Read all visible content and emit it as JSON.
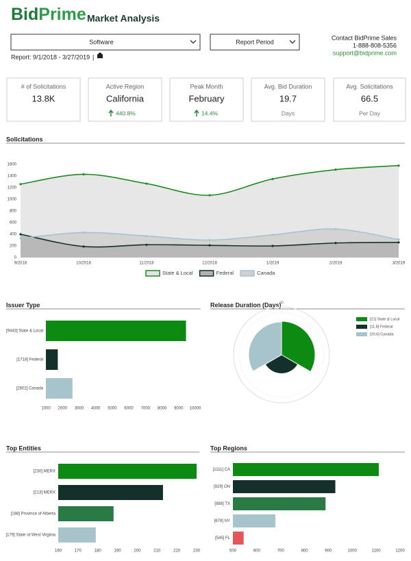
{
  "header": {
    "logo_bid": "Bid",
    "logo_prime": "Prime",
    "title": "Market Analysis",
    "dropdown_industry": "Software",
    "dropdown_period": "Report Period",
    "report": "Report: 9/1/2018 - 3/27/2019",
    "separator": "|",
    "contact_title": "Contact BidPrime Sales",
    "phone": "1-888-808-5356",
    "email": "support@bidprime.com"
  },
  "kpis": [
    {
      "label": "# of Solicitations",
      "value": "13.8K"
    },
    {
      "label": "Active Region",
      "value": "California",
      "change": "440.8%"
    },
    {
      "label": "Peak Month",
      "value": "February",
      "change": "14.4%"
    },
    {
      "label": "Avg. Bid Duration",
      "value": "19.7",
      "sub": "Days"
    },
    {
      "label": "Avg. Solicitations",
      "value": "66.5",
      "sub": "Per Day"
    }
  ],
  "chart_data": [
    {
      "type": "area",
      "title": "Solicitations",
      "categories": [
        "9/2018",
        "10/2018",
        "11/2018",
        "12/2018",
        "1/2019",
        "2/2019",
        "3/2019"
      ],
      "series": [
        {
          "name": "State & Local",
          "color": "#1f8a1f",
          "fill": "#e3e3e3",
          "values": [
            1260,
            1430,
            1270,
            1070,
            1350,
            1510,
            1580
          ]
        },
        {
          "name": "Federal",
          "color": "#14302a",
          "fill": "#b3b3b3",
          "values": [
            400,
            190,
            220,
            210,
            200,
            250,
            260
          ]
        },
        {
          "name": "Canada",
          "color": "#a7c3cb",
          "fill": "#cfcfcf",
          "values": [
            330,
            430,
            370,
            300,
            390,
            490,
            310
          ]
        }
      ],
      "ylim": [
        0,
        1600
      ],
      "yticks": [
        0,
        200,
        400,
        600,
        800,
        1000,
        1200,
        1400,
        1600
      ],
      "legend": "bottom"
    },
    {
      "type": "barh",
      "title": "Issuer Type",
      "categories": [
        "[9443] State & Local",
        "[1718] Federal",
        "[2602] Canada"
      ],
      "values": [
        9443,
        1718,
        2602
      ],
      "colors": [
        "#0c8a12",
        "#14302a",
        "#a7c3cb"
      ],
      "xlim": [
        1000,
        10000
      ],
      "xticks": [
        1000,
        2000,
        3000,
        4000,
        5000,
        6000,
        7000,
        8000,
        9000,
        10000
      ]
    },
    {
      "type": "polar",
      "title": "Release Duration (Days)",
      "categories": [
        "[21] State & Local",
        "[11.8] Federal",
        "[20.6] Canada"
      ],
      "values": [
        21,
        11.8,
        20.6
      ],
      "colors": [
        "#0c8a12",
        "#14302a",
        "#a7c3cb"
      ],
      "rlim": [
        0,
        30
      ],
      "rticks": [
        30
      ],
      "legend": "top-right"
    },
    {
      "type": "barh",
      "title": "Top Entities",
      "categories": [
        "[230] MERX",
        "[213] MERX",
        "[188] Province of Alberta",
        "[179] State of West Virginia"
      ],
      "values": [
        230,
        213,
        188,
        179
      ],
      "colors": [
        "#0c8a12",
        "#14302a",
        "#2a7a45",
        "#a7c3cb"
      ],
      "xlim": [
        160,
        230
      ],
      "xticks": [
        160,
        170,
        180,
        190,
        200,
        210,
        220,
        230
      ]
    },
    {
      "type": "barh",
      "title": "Top Regions",
      "categories": [
        "[1111] CA",
        "[929] ON",
        "[888] TX",
        "[678] NY",
        "[545] FL"
      ],
      "values": [
        1111,
        929,
        888,
        678,
        545
      ],
      "colors": [
        "#0c8a12",
        "#14302a",
        "#2a7a45",
        "#a7c3cb",
        "#e2575a"
      ],
      "xlim": [
        500,
        1200
      ],
      "xticks": [
        500,
        600,
        700,
        800,
        900,
        1000,
        1100,
        1200
      ]
    }
  ]
}
